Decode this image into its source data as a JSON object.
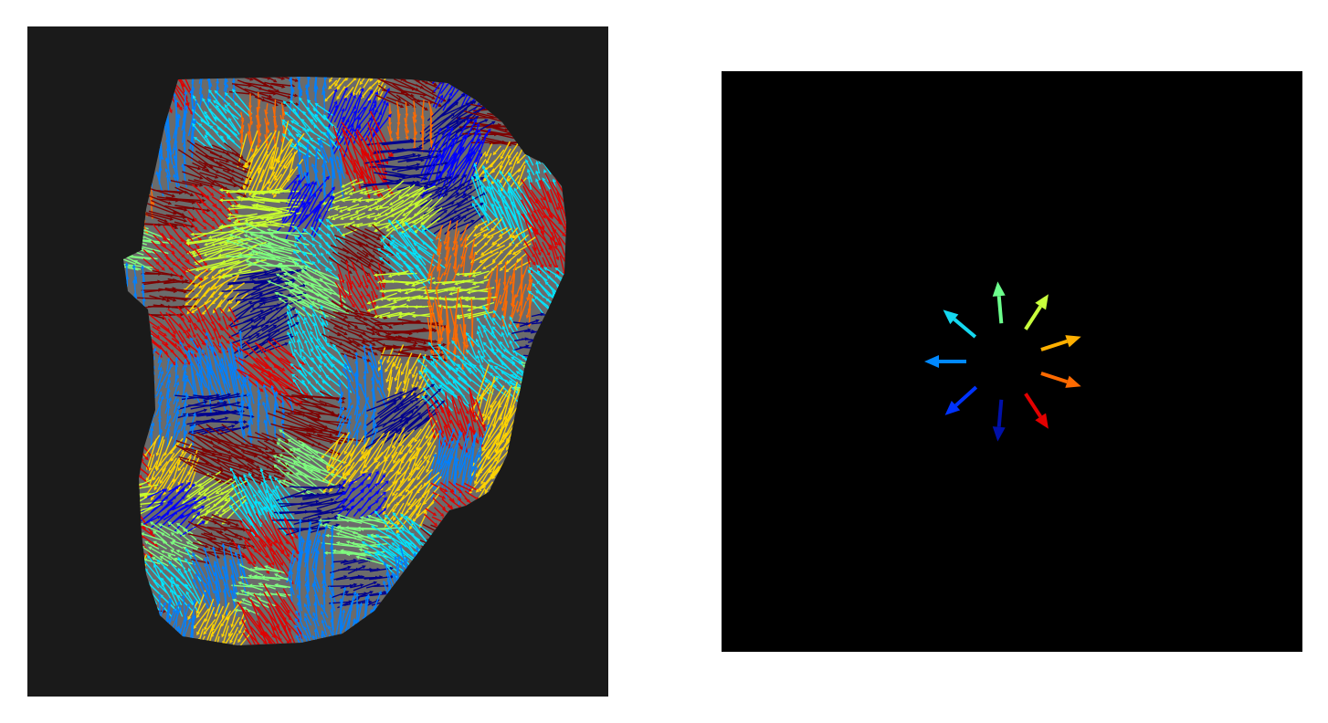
{
  "figure": {
    "left_panel": {
      "kind": "vector-field-overlay-on-grayscale-image",
      "panel_background_color": "#1a1a1a",
      "object_fill_color": "#6b6b6b",
      "colormap": "jet",
      "arrow_colors_by_direction": [
        "#00008f",
        "#0000ff",
        "#0080ff",
        "#00e5ff",
        "#7fff7f",
        "#c8ff2d",
        "#ffd400",
        "#ff6a00",
        "#e00000",
        "#7f0000"
      ]
    },
    "right_panel": {
      "kind": "direction-color-legend",
      "background_color": "#000000",
      "arrows": [
        {
          "name": "arrow-up",
          "angle_deg": 95,
          "color": "#6cff8c"
        },
        {
          "name": "arrow-up-right",
          "angle_deg": 57,
          "color": "#c8ff3c"
        },
        {
          "name": "arrow-right-up",
          "angle_deg": 18,
          "color": "#ffb000"
        },
        {
          "name": "arrow-right-down",
          "angle_deg": -18,
          "color": "#ff6a00"
        },
        {
          "name": "arrow-down-right",
          "angle_deg": -57,
          "color": "#e30000"
        },
        {
          "name": "arrow-down",
          "angle_deg": -95,
          "color": "#0010a8"
        },
        {
          "name": "arrow-down-left",
          "angle_deg": -138,
          "color": "#0033ff"
        },
        {
          "name": "arrow-left",
          "angle_deg": 180,
          "color": "#0088ff"
        },
        {
          "name": "arrow-up-left",
          "angle_deg": 140,
          "color": "#14d8f0"
        }
      ]
    }
  }
}
